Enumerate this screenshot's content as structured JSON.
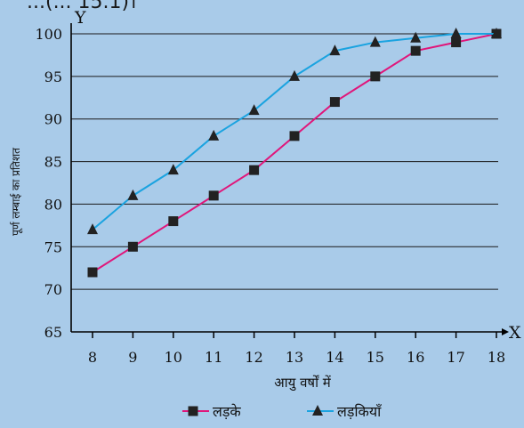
{
  "partial_text": "...(... 15.1)।",
  "chart_data": {
    "type": "line",
    "title": "",
    "xlabel": "आयु वर्षों में",
    "ylabel": "पूर्ण लम्बाई का प्रतिशत",
    "x_axis_letter": "X",
    "y_axis_letter": "Y",
    "x": [
      8,
      9,
      10,
      11,
      12,
      13,
      14,
      15,
      16,
      17,
      18
    ],
    "xlim": [
      8,
      18
    ],
    "ylim": [
      65,
      100
    ],
    "yticks": [
      65,
      70,
      75,
      80,
      85,
      90,
      95,
      100
    ],
    "grid": true,
    "legend_position": "bottom-center",
    "series": [
      {
        "name": "लड़के",
        "marker": "square",
        "color": "#e0167a",
        "marker_color": "#222222",
        "values": [
          72,
          75,
          78,
          81,
          84,
          88,
          92,
          95,
          98,
          99,
          100
        ]
      },
      {
        "name": "लड़कियाँ",
        "marker": "triangle",
        "color": "#1aa3e0",
        "marker_color": "#222222",
        "values": [
          77,
          81,
          84,
          88,
          91,
          95,
          98,
          99,
          99.5,
          100,
          100
        ]
      }
    ]
  }
}
